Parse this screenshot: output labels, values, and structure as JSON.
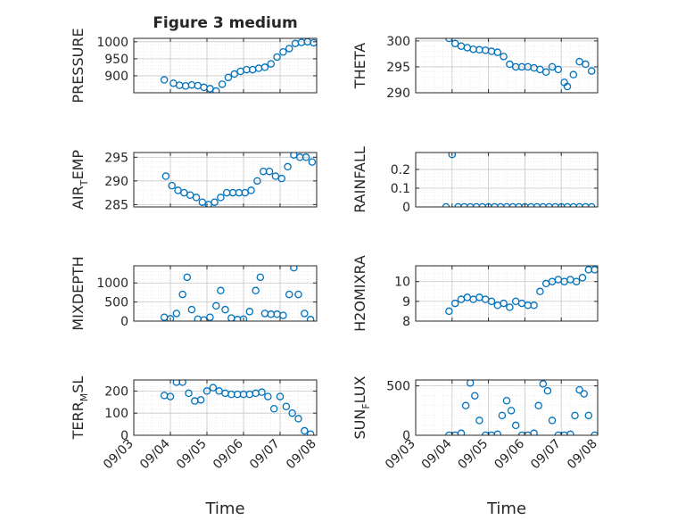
{
  "figure": {
    "title": "Figure 3 medium"
  },
  "colors": {
    "marker": "#0072BD",
    "axes": "#262626",
    "grid": "#c8c8c8",
    "minor_grid": "#e3e3e3"
  },
  "chart_data": [
    {
      "type": "scatter",
      "ylabel": "PRESSURE",
      "title": "Figure 3 medium",
      "xlim": [
        "09/03",
        "09/08"
      ],
      "ylim": [
        850,
        1010
      ],
      "yticks": [
        900,
        950,
        1000
      ],
      "x_tick_labels": [],
      "x": [
        "09/03 20:00",
        "09/04 02:00",
        "09/04 06:00",
        "09/04 10:00",
        "09/04 14:00",
        "09/04 18:00",
        "09/04 22:00",
        "09/05 02:00",
        "09/05 06:00",
        "09/05 10:00",
        "09/05 14:00",
        "09/05 18:00",
        "09/05 22:00",
        "09/06 02:00",
        "09/06 06:00",
        "09/06 10:00",
        "09/06 14:00",
        "09/06 18:00",
        "09/06 22:00",
        "09/07 02:00",
        "09/07 06:00",
        "09/07 10:00",
        "09/07 14:00",
        "09/07 18:00",
        "09/07 22:00"
      ],
      "y": [
        888,
        878,
        872,
        870,
        873,
        871,
        866,
        862,
        855,
        875,
        895,
        905,
        913,
        918,
        918,
        922,
        925,
        935,
        955,
        970,
        980,
        995,
        998,
        1000,
        997
      ]
    },
    {
      "type": "scatter",
      "ylabel": "THETA",
      "xlim": [
        "09/03",
        "09/08"
      ],
      "ylim": [
        290,
        300.5
      ],
      "yticks": [
        290,
        295,
        300
      ],
      "x_tick_labels": [],
      "x": [
        "09/03 22:00",
        "09/04 02:00",
        "09/04 06:00",
        "09/04 10:00",
        "09/04 14:00",
        "09/04 18:00",
        "09/04 22:00",
        "09/05 02:00",
        "09/05 06:00",
        "09/05 10:00",
        "09/05 14:00",
        "09/05 18:00",
        "09/05 22:00",
        "09/06 02:00",
        "09/06 06:00",
        "09/06 10:00",
        "09/06 14:00",
        "09/06 18:00",
        "09/06 22:00",
        "09/07 02:00",
        "09/07 04:00",
        "09/07 08:00",
        "09/07 12:00",
        "09/07 16:00",
        "09/07 20:00"
      ],
      "y": [
        300.5,
        299.5,
        299,
        298.7,
        298.4,
        298.3,
        298.2,
        298,
        297.8,
        297,
        295.5,
        295,
        295,
        295,
        294.8,
        294.5,
        294,
        295,
        294.5,
        292,
        291.2,
        293.5,
        296,
        295.5,
        294.2
      ]
    },
    {
      "type": "scatter",
      "ylabel": "AIR_TEMP",
      "xlim": [
        "09/03",
        "09/08"
      ],
      "ylim": [
        284.5,
        296
      ],
      "yticks": [
        285,
        290,
        295
      ],
      "x_tick_labels": [],
      "x": [
        "09/03 21:00",
        "09/04 01:00",
        "09/04 05:00",
        "09/04 09:00",
        "09/04 13:00",
        "09/04 17:00",
        "09/04 21:00",
        "09/05 01:00",
        "09/05 05:00",
        "09/05 09:00",
        "09/05 13:00",
        "09/05 17:00",
        "09/05 21:00",
        "09/06 01:00",
        "09/06 05:00",
        "09/06 09:00",
        "09/06 13:00",
        "09/06 17:00",
        "09/06 21:00",
        "09/07 01:00",
        "09/07 05:00",
        "09/07 09:00",
        "09/07 13:00",
        "09/07 17:00",
        "09/07 21:00"
      ],
      "y": [
        291,
        289,
        288,
        287.5,
        287,
        286.5,
        285.5,
        285,
        285.5,
        286.5,
        287.5,
        287.5,
        287.5,
        287.5,
        288,
        290,
        292,
        292,
        291,
        290.5,
        293,
        295.5,
        295,
        295,
        294
      ]
    },
    {
      "type": "scatter",
      "ylabel": "RAINFALL",
      "xlim": [
        "09/03",
        "09/08"
      ],
      "ylim": [
        0,
        0.29
      ],
      "yticks": [
        0,
        0.1,
        0.2
      ],
      "x_tick_labels": [],
      "x": [
        "09/03 20:00",
        "09/04 00:00",
        "09/04 04:00",
        "09/04 08:00",
        "09/04 12:00",
        "09/04 16:00",
        "09/04 20:00",
        "09/05 00:00",
        "09/05 04:00",
        "09/05 08:00",
        "09/05 12:00",
        "09/05 16:00",
        "09/05 20:00",
        "09/06 00:00",
        "09/06 04:00",
        "09/06 08:00",
        "09/06 12:00",
        "09/06 16:00",
        "09/06 20:00",
        "09/07 00:00",
        "09/07 04:00",
        "09/07 08:00",
        "09/07 12:00",
        "09/07 16:00",
        "09/07 20:00"
      ],
      "y": [
        0,
        0.28,
        0,
        0,
        0,
        0,
        0,
        0,
        0,
        0,
        0,
        0,
        0,
        0,
        0,
        0,
        0,
        0,
        0,
        0,
        0,
        0,
        0,
        0,
        0
      ]
    },
    {
      "type": "scatter",
      "ylabel": "MIXDEPTH",
      "xlim": [
        "09/03",
        "09/08"
      ],
      "ylim": [
        0,
        1450
      ],
      "yticks": [
        0,
        500,
        1000
      ],
      "x_tick_labels": [],
      "x": [
        "09/03 20:00",
        "09/04 00:00",
        "09/04 04:00",
        "09/04 08:00",
        "09/04 11:00",
        "09/04 14:00",
        "09/04 18:00",
        "09/04 22:00",
        "09/05 02:00",
        "09/05 06:00",
        "09/05 09:00",
        "09/05 12:00",
        "09/05 16:00",
        "09/05 20:00",
        "09/06 00:00",
        "09/06 04:00",
        "09/06 08:00",
        "09/06 11:00",
        "09/06 14:00",
        "09/06 18:00",
        "09/06 22:00",
        "09/07 02:00",
        "09/07 06:00",
        "09/07 09:00",
        "09/07 12:00",
        "09/07 16:00",
        "09/07 20:00"
      ],
      "y": [
        100,
        60,
        200,
        700,
        1150,
        300,
        50,
        30,
        100,
        400,
        800,
        300,
        80,
        40,
        50,
        250,
        800,
        1150,
        200,
        180,
        180,
        150,
        700,
        1400,
        700,
        200,
        40
      ]
    },
    {
      "type": "scatter",
      "ylabel": "H2OMIXRA",
      "xlim": [
        "09/03",
        "09/08"
      ],
      "ylim": [
        8,
        10.8
      ],
      "yticks": [
        8,
        9,
        10
      ],
      "x_tick_labels": [],
      "x": [
        "09/03 22:00",
        "09/04 02:00",
        "09/04 06:00",
        "09/04 10:00",
        "09/04 14:00",
        "09/04 18:00",
        "09/04 22:00",
        "09/05 02:00",
        "09/05 06:00",
        "09/05 10:00",
        "09/05 14:00",
        "09/05 18:00",
        "09/05 22:00",
        "09/06 02:00",
        "09/06 06:00",
        "09/06 10:00",
        "09/06 14:00",
        "09/06 18:00",
        "09/06 22:00",
        "09/07 02:00",
        "09/07 06:00",
        "09/07 10:00",
        "09/07 14:00",
        "09/07 18:00",
        "09/07 22:00"
      ],
      "y": [
        8.5,
        8.9,
        9.1,
        9.2,
        9.1,
        9.2,
        9.1,
        9.0,
        8.8,
        8.9,
        8.7,
        9.0,
        8.9,
        8.8,
        8.8,
        9.5,
        9.9,
        10.0,
        10.1,
        10.0,
        10.1,
        10.0,
        10.2,
        10.6,
        10.6
      ]
    },
    {
      "type": "scatter",
      "ylabel": "TERR_MSL",
      "xlim": [
        "09/03",
        "09/08"
      ],
      "ylim": [
        0,
        250
      ],
      "yticks": [
        0,
        100,
        200
      ],
      "x_tick_labels": [
        "09/03",
        "09/04",
        "09/05",
        "09/06",
        "09/07",
        "09/08"
      ],
      "xlabel": "Time",
      "x": [
        "09/03 20:00",
        "09/04 00:00",
        "09/04 04:00",
        "09/04 08:00",
        "09/04 12:00",
        "09/04 16:00",
        "09/04 20:00",
        "09/05 00:00",
        "09/05 04:00",
        "09/05 08:00",
        "09/05 12:00",
        "09/05 16:00",
        "09/05 20:00",
        "09/06 00:00",
        "09/06 04:00",
        "09/06 08:00",
        "09/06 12:00",
        "09/06 16:00",
        "09/06 20:00",
        "09/07 00:00",
        "09/07 04:00",
        "09/07 08:00",
        "09/07 12:00",
        "09/07 16:00",
        "09/07 20:00"
      ],
      "y": [
        180,
        175,
        240,
        240,
        190,
        155,
        160,
        200,
        215,
        200,
        190,
        185,
        185,
        185,
        185,
        190,
        195,
        175,
        120,
        175,
        130,
        100,
        75,
        20,
        5
      ]
    },
    {
      "type": "scatter",
      "ylabel": "SUN_FLUX",
      "xlim": [
        "09/03",
        "09/08"
      ],
      "ylim": [
        0,
        560
      ],
      "yticks": [
        0,
        500
      ],
      "x_tick_labels": [
        "09/03",
        "09/04",
        "09/05",
        "09/06",
        "09/07",
        "09/08"
      ],
      "xlabel": "Time",
      "x": [
        "09/03 22:00",
        "09/04 02:00",
        "09/04 06:00",
        "09/04 09:00",
        "09/04 12:00",
        "09/04 15:00",
        "09/04 18:00",
        "09/04 22:00",
        "09/05 02:00",
        "09/05 06:00",
        "09/05 09:00",
        "09/05 12:00",
        "09/05 15:00",
        "09/05 18:00",
        "09/05 22:00",
        "09/06 02:00",
        "09/06 06:00",
        "09/06 09:00",
        "09/06 12:00",
        "09/06 15:00",
        "09/06 18:00",
        "09/06 22:00",
        "09/07 02:00",
        "09/07 06:00",
        "09/07 09:00",
        "09/07 12:00",
        "09/07 15:00",
        "09/07 18:00",
        "09/07 22:00"
      ],
      "y": [
        0,
        0,
        20,
        300,
        530,
        400,
        150,
        0,
        0,
        10,
        200,
        350,
        250,
        100,
        0,
        0,
        20,
        300,
        520,
        450,
        150,
        0,
        0,
        10,
        200,
        460,
        420,
        200,
        0
      ]
    }
  ]
}
